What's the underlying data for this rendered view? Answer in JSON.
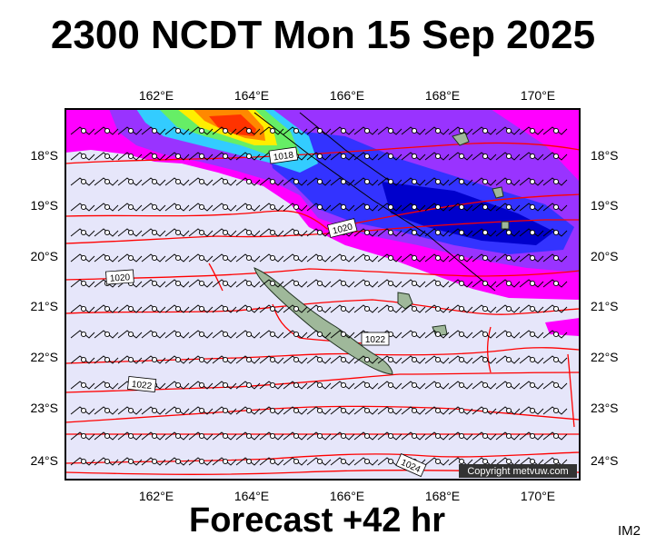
{
  "header": {
    "title": "2300 NCDT Mon 15 Sep 2025"
  },
  "footer": {
    "forecast": "Forecast +42 hr",
    "code": "IM2"
  },
  "map": {
    "lon_ticks": [
      "162°E",
      "164°E",
      "166°E",
      "168°E",
      "170°E"
    ],
    "lat_ticks": [
      "18°S",
      "19°S",
      "20°S",
      "21°S",
      "22°S",
      "23°S",
      "24°S"
    ],
    "isobar_labels": [
      "1018",
      "1020",
      "1020",
      "1022",
      "1022",
      "1024"
    ],
    "copyright": "Copyright metvuw.com",
    "colors": {
      "ocean": "#e6e6fa",
      "isobar": "#ff0000",
      "rain_light": "#ff00ff",
      "rain_medium": "#9933ff",
      "rain_heavy": "#0000cc",
      "rain_extreme": "#ff3300",
      "land": "#9fb89a"
    }
  }
}
